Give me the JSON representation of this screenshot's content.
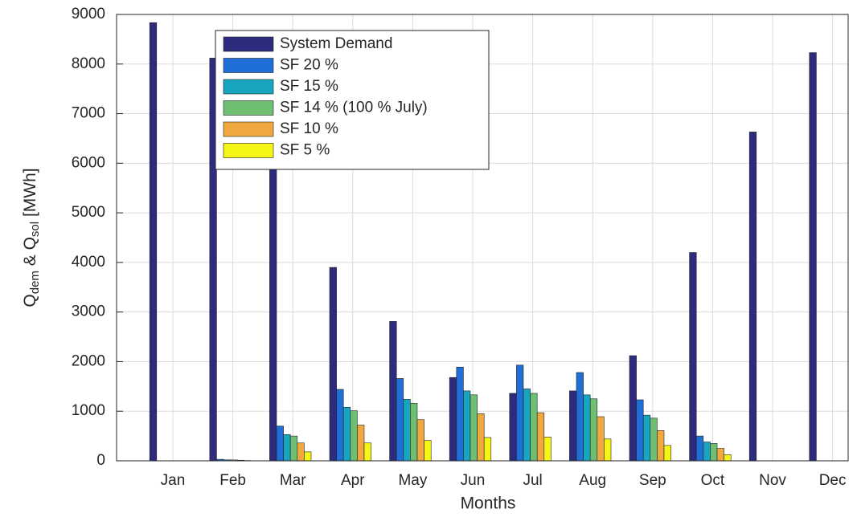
{
  "chart_data": {
    "type": "bar",
    "ylabel_parts": [
      "Q",
      "dem",
      " & Q",
      "sol",
      " [MWh]"
    ],
    "xlabel": "Months",
    "categories": [
      "Jan",
      "Feb",
      "Mar",
      "Apr",
      "May",
      "Jun",
      "Jul",
      "Aug",
      "Sep",
      "Oct",
      "Nov",
      "Dec"
    ],
    "series": [
      {
        "name": "System Demand",
        "color": "#2c2b7e",
        "values": [
          8835,
          8120,
          6670,
          3900,
          2810,
          1680,
          1360,
          1410,
          2120,
          4200,
          6630,
          8230
        ]
      },
      {
        "name": "SF 20 %",
        "color": "#1f6fd6",
        "values": [
          0,
          30,
          700,
          1440,
          1660,
          1890,
          1930,
          1780,
          1230,
          500,
          0,
          0
        ]
      },
      {
        "name": "SF 15 %",
        "color": "#17a5c0",
        "values": [
          0,
          20,
          530,
          1080,
          1240,
          1410,
          1450,
          1330,
          920,
          380,
          0,
          0
        ]
      },
      {
        "name": "SF 14 % (100 % July)",
        "color": "#6fbf73",
        "values": [
          0,
          18,
          500,
          1010,
          1160,
          1330,
          1360,
          1250,
          860,
          350,
          0,
          0
        ]
      },
      {
        "name": "SF 10 %",
        "color": "#f0a840",
        "values": [
          0,
          12,
          360,
          720,
          830,
          950,
          970,
          890,
          610,
          250,
          0,
          0
        ]
      },
      {
        "name": "SF 5 %",
        "color": "#f5f516",
        "values": [
          0,
          6,
          180,
          360,
          410,
          470,
          480,
          440,
          310,
          125,
          0,
          0
        ]
      }
    ],
    "ylim": [
      0,
      9000
    ],
    "yticks": [
      0,
      1000,
      2000,
      3000,
      4000,
      5000,
      6000,
      7000,
      8000,
      9000
    ],
    "grid": true,
    "legend": "north"
  }
}
